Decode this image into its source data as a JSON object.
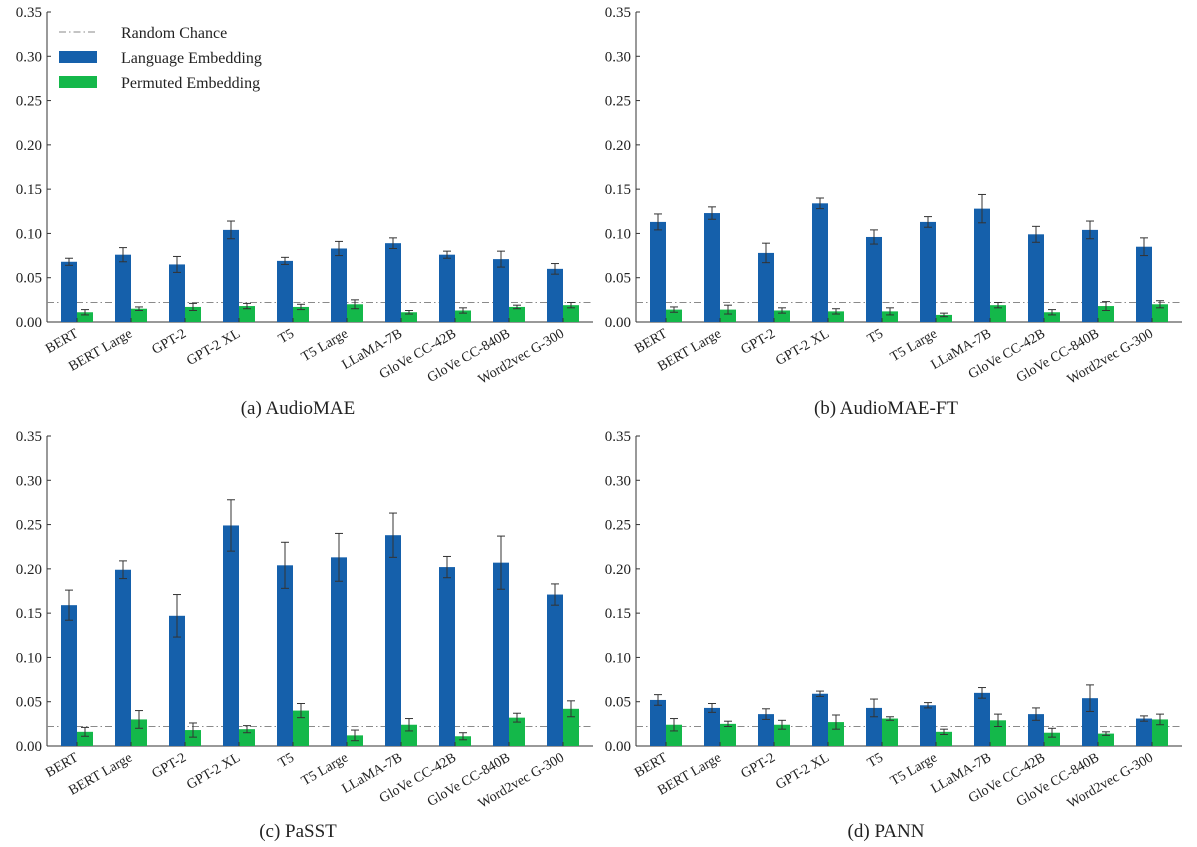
{
  "colors": {
    "language": "#1560ab",
    "permuted": "#14b84a",
    "chance_line": "#8a8a8a",
    "axis": "#333333"
  },
  "legend": {
    "chance": "Random Chance",
    "language": "Language Embedding",
    "permuted": "Permuted Embedding"
  },
  "chart_data": [
    {
      "type": "bar",
      "caption": "(a) AudioMAE",
      "categories": [
        "BERT",
        "BERT Large",
        "GPT-2",
        "GPT-2 XL",
        "T5",
        "T5 Large",
        "LLaMA-7B",
        "GloVe CC-42B",
        "GloVe CC-840B",
        "Word2vec G-300"
      ],
      "series": [
        {
          "name": "Language Embedding",
          "values": [
            0.068,
            0.076,
            0.065,
            0.104,
            0.069,
            0.083,
            0.089,
            0.076,
            0.071,
            0.06
          ],
          "errors": [
            0.004,
            0.008,
            0.009,
            0.01,
            0.004,
            0.008,
            0.006,
            0.004,
            0.009,
            0.006
          ]
        },
        {
          "name": "Permuted Embedding",
          "values": [
            0.011,
            0.015,
            0.017,
            0.018,
            0.017,
            0.02,
            0.011,
            0.013,
            0.017,
            0.019
          ],
          "errors": [
            0.003,
            0.002,
            0.004,
            0.003,
            0.003,
            0.005,
            0.002,
            0.003,
            0.002,
            0.003
          ]
        }
      ],
      "random_chance": 0.022,
      "ylim": [
        0,
        0.35
      ],
      "yticks": [
        "0.00",
        "0.05",
        "0.10",
        "0.15",
        "0.20",
        "0.25",
        "0.30",
        "0.35"
      ],
      "legend_position": "top-left"
    },
    {
      "type": "bar",
      "caption": "(b) AudioMAE-FT",
      "categories": [
        "BERT",
        "BERT Large",
        "GPT-2",
        "GPT-2 XL",
        "T5",
        "T5 Large",
        "LLaMA-7B",
        "GloVe CC-42B",
        "GloVe CC-840B",
        "Word2vec G-300"
      ],
      "series": [
        {
          "name": "Language Embedding",
          "values": [
            0.113,
            0.123,
            0.078,
            0.134,
            0.096,
            0.113,
            0.128,
            0.099,
            0.104,
            0.085
          ],
          "errors": [
            0.009,
            0.007,
            0.011,
            0.006,
            0.008,
            0.006,
            0.016,
            0.009,
            0.01,
            0.01
          ]
        },
        {
          "name": "Permuted Embedding",
          "values": [
            0.014,
            0.014,
            0.013,
            0.012,
            0.012,
            0.008,
            0.019,
            0.011,
            0.018,
            0.02
          ],
          "errors": [
            0.003,
            0.005,
            0.003,
            0.003,
            0.004,
            0.002,
            0.003,
            0.003,
            0.005,
            0.004
          ]
        }
      ],
      "random_chance": 0.022,
      "ylim": [
        0,
        0.35
      ],
      "yticks": [
        "0.00",
        "0.05",
        "0.10",
        "0.15",
        "0.20",
        "0.25",
        "0.30",
        "0.35"
      ]
    },
    {
      "type": "bar",
      "caption": "(c) PaSST",
      "categories": [
        "BERT",
        "BERT Large",
        "GPT-2",
        "GPT-2 XL",
        "T5",
        "T5 Large",
        "LLaMA-7B",
        "GloVe CC-42B",
        "GloVe CC-840B",
        "Word2vec G-300"
      ],
      "series": [
        {
          "name": "Language Embedding",
          "values": [
            0.159,
            0.199,
            0.147,
            0.249,
            0.204,
            0.213,
            0.238,
            0.202,
            0.207,
            0.171
          ],
          "errors": [
            0.017,
            0.01,
            0.024,
            0.029,
            0.026,
            0.027,
            0.025,
            0.012,
            0.03,
            0.012
          ]
        },
        {
          "name": "Permuted Embedding",
          "values": [
            0.016,
            0.03,
            0.018,
            0.019,
            0.04,
            0.012,
            0.024,
            0.011,
            0.032,
            0.042
          ],
          "errors": [
            0.005,
            0.01,
            0.008,
            0.004,
            0.008,
            0.006,
            0.007,
            0.004,
            0.005,
            0.009
          ]
        }
      ],
      "random_chance": 0.022,
      "ylim": [
        0,
        0.35
      ],
      "yticks": [
        "0.00",
        "0.05",
        "0.10",
        "0.15",
        "0.20",
        "0.25",
        "0.30",
        "0.35"
      ]
    },
    {
      "type": "bar",
      "caption": "(d) PANN",
      "categories": [
        "BERT",
        "BERT Large",
        "GPT-2",
        "GPT-2 XL",
        "T5",
        "T5 Large",
        "LLaMA-7B",
        "GloVe CC-42B",
        "GloVe CC-840B",
        "Word2vec G-300"
      ],
      "series": [
        {
          "name": "Language Embedding",
          "values": [
            0.052,
            0.043,
            0.036,
            0.059,
            0.043,
            0.046,
            0.06,
            0.036,
            0.054,
            0.031
          ],
          "errors": [
            0.006,
            0.005,
            0.006,
            0.003,
            0.01,
            0.003,
            0.006,
            0.007,
            0.015,
            0.003
          ]
        },
        {
          "name": "Permuted Embedding",
          "values": [
            0.024,
            0.025,
            0.024,
            0.027,
            0.031,
            0.016,
            0.029,
            0.015,
            0.014,
            0.03
          ],
          "errors": [
            0.007,
            0.003,
            0.005,
            0.008,
            0.002,
            0.003,
            0.007,
            0.005,
            0.002,
            0.006
          ]
        }
      ],
      "random_chance": 0.022,
      "ylim": [
        0,
        0.35
      ],
      "yticks": [
        "0.00",
        "0.05",
        "0.10",
        "0.15",
        "0.20",
        "0.25",
        "0.30",
        "0.35"
      ]
    }
  ]
}
